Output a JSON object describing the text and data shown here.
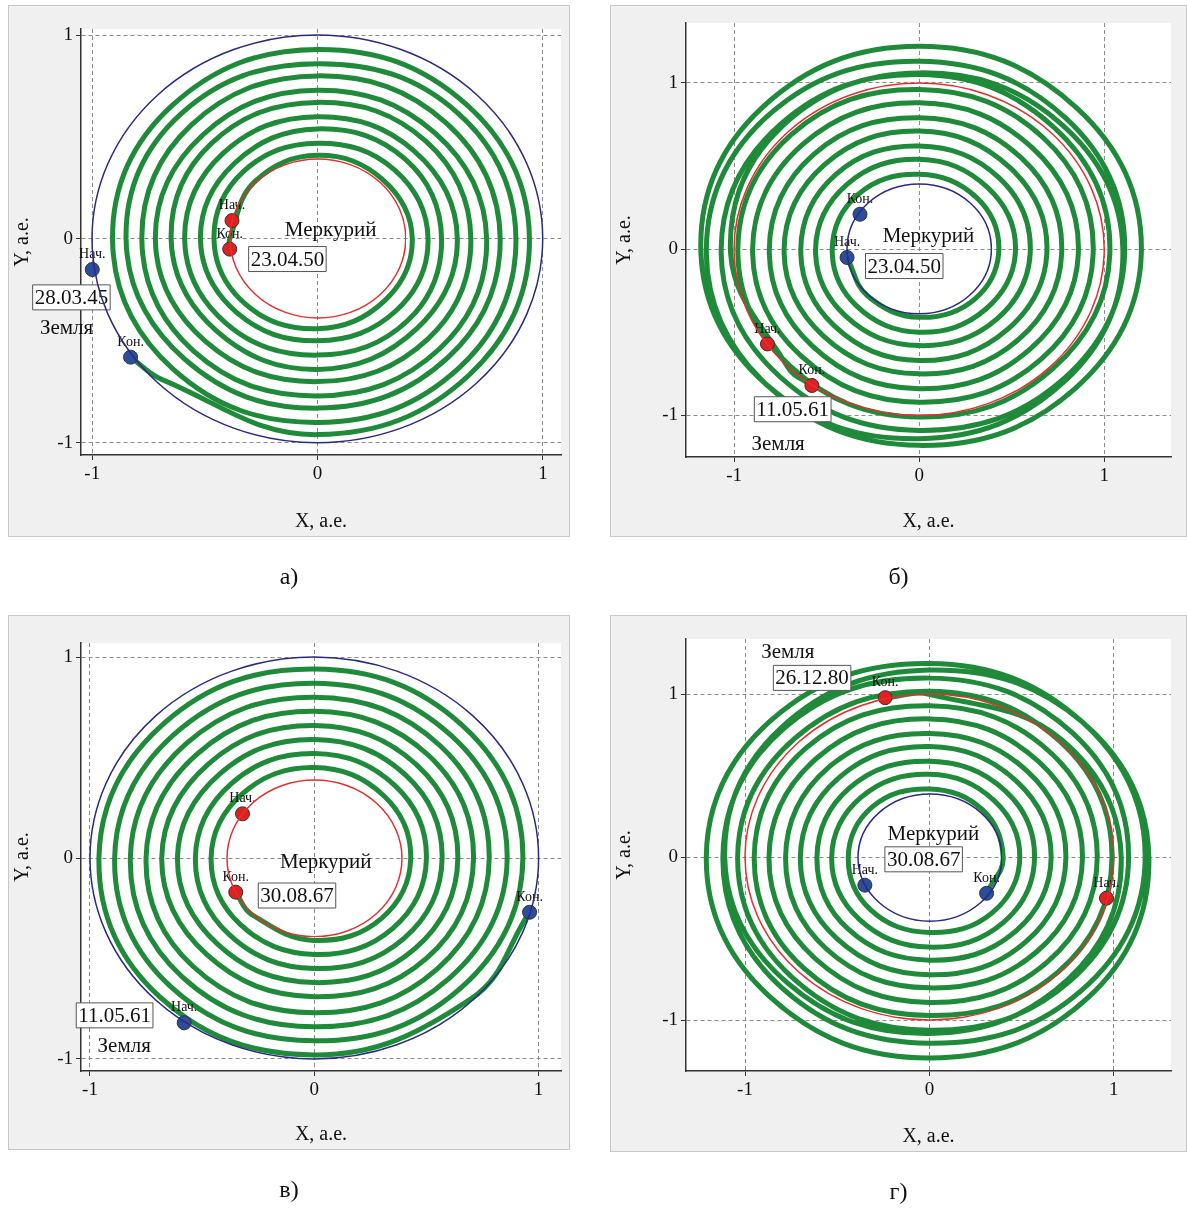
{
  "chart_data": [
    {
      "type": "line",
      "title": "а)",
      "xlabel": "X, а.е.",
      "ylabel": "Y, а.е.",
      "xlim": [
        -1.05,
        1.08
      ],
      "ylim": [
        -1.06,
        1.03
      ],
      "xticks": [
        -1,
        0,
        1
      ],
      "yticks": [
        -1,
        0,
        1
      ],
      "grid": true,
      "series": [
        {
          "type": "line",
          "color": "#1e8a3a",
          "x": [
            -0.83,
            -0.69,
            0,
            0.67,
            0.94,
            0.66,
            0,
            -0.65,
            -0.91,
            -0.64,
            0,
            0.63,
            0.88,
            0.62,
            0,
            -0.61,
            -0.85,
            -0.59,
            0,
            0.58,
            0.81,
            0.57,
            0,
            -0.56,
            -0.78,
            -0.55,
            0,
            0.54,
            0.75,
            0.52,
            0,
            -0.51,
            -0.72,
            -0.5,
            0,
            0.49,
            0.68,
            0.48,
            0,
            -0.47,
            -0.65,
            -0.45,
            0,
            0.44,
            0.62,
            0.43,
            0,
            -0.42,
            -0.59,
            -0.41,
            0,
            0.4,
            0.55,
            0.39,
            0,
            -0.37,
            -0.52,
            -0.36,
            0,
            0.35,
            0.49,
            0.34,
            0,
            -0.33,
            -0.46,
            -0.32,
            0,
            0.3,
            0.42,
            0.29,
            0,
            -0.28,
            -0.39,
            -0.39
          ],
          "values": [
            -0.58,
            -0.69,
            -0.96,
            -0.67,
            0,
            0.66,
            0.93,
            0.65,
            0,
            -0.64,
            -0.9,
            -0.63,
            0,
            0.62,
            0.86,
            0.61,
            0,
            -0.59,
            -0.83,
            -0.58,
            0,
            0.57,
            0.8,
            0.56,
            0,
            -0.55,
            -0.77,
            -0.54,
            0,
            0.52,
            0.73,
            0.51,
            0,
            -0.5,
            -0.7,
            -0.49,
            0,
            0.48,
            0.67,
            0.47,
            0,
            -0.45,
            -0.64,
            -0.44,
            0,
            0.43,
            0.6,
            0.42,
            0,
            -0.41,
            -0.57,
            -0.4,
            0,
            0.39,
            0.54,
            0.37,
            0,
            -0.36,
            -0.5,
            -0.35,
            0,
            0.34,
            0.47,
            0.33,
            0,
            -0.32,
            -0.44,
            -0.3,
            0,
            0.29,
            0.41,
            0.28,
            0,
            -0.05
          ]
        },
        {
          "type": "scatter",
          "marker": "circle",
          "color": "#2b4e9b",
          "x": [
            -1.0,
            -0.83
          ],
          "values": [
            -0.15,
            -0.58
          ],
          "value_labels": [
            "Нач.",
            "Кон."
          ]
        },
        {
          "type": "scatter",
          "marker": "circle",
          "color": "#e02020",
          "x": [
            -0.38,
            -0.39
          ],
          "values": [
            0.09,
            -0.05
          ],
          "value_labels": [
            "Нач.",
            "Кон."
          ]
        }
      ],
      "annotations": [
        "Меркурий",
        "23.04.50",
        "28.03.45",
        "Земля"
      ]
    },
    {
      "type": "line",
      "title": "б)",
      "xlabel": "X, а.е.",
      "ylabel": "Y, а.е.",
      "xlim": [
        -1.26,
        1.36
      ],
      "ylim": [
        -1.25,
        1.36
      ],
      "xticks": [
        -1,
        0,
        1
      ],
      "yticks": [
        -1,
        0,
        1
      ],
      "grid": true,
      "series": [
        {
          "type": "line",
          "color": "#1e8a3a",
          "x": [
            -0.39,
            -0.28,
            0,
            0.3,
            0.43,
            0.31,
            0,
            -0.33,
            -0.47,
            -0.34,
            0,
            0.36,
            0.52,
            0.37,
            0,
            -0.39,
            -0.56,
            -0.4,
            0,
            0.42,
            0.6,
            0.43,
            0,
            -0.45,
            -0.64,
            -0.46,
            0,
            0.48,
            0.69,
            0.49,
            0,
            -0.51,
            -0.73,
            -0.52,
            0,
            0.54,
            0.77,
            0.55,
            0,
            -0.57,
            -0.81,
            -0.58,
            0,
            0.6,
            0.86,
            0.61,
            0,
            -0.63,
            -0.9,
            -0.64,
            0,
            0.66,
            0.94,
            0.67,
            0,
            -0.69,
            -0.98,
            -0.7,
            0,
            0.72,
            1.03,
            0.73,
            0,
            -0.75,
            -1.07,
            -0.76,
            0,
            0.78,
            1.11,
            0.79,
            0,
            -0.81,
            -1.15,
            -0.82,
            0,
            0.84,
            1.2,
            0.85,
            0,
            -0.85,
            -1.18,
            -0.82,
            0,
            0.79,
            1.1,
            0.76,
            0,
            -0.74,
            -1.02,
            -0.71,
            -0.58
          ],
          "values": [
            -0.05,
            -0.28,
            -0.41,
            -0.3,
            0,
            0.31,
            0.45,
            0.33,
            0,
            -0.34,
            -0.5,
            -0.36,
            0,
            0.37,
            0.54,
            0.39,
            0,
            -0.4,
            -0.58,
            -0.42,
            0,
            0.43,
            0.62,
            0.45,
            0,
            -0.46,
            -0.67,
            -0.48,
            0,
            0.49,
            0.71,
            0.51,
            0,
            -0.52,
            -0.75,
            -0.54,
            0,
            0.55,
            0.79,
            0.57,
            0,
            -0.58,
            -0.84,
            -0.6,
            0,
            0.61,
            0.88,
            0.63,
            0,
            -0.64,
            -0.92,
            -0.66,
            0,
            0.67,
            0.96,
            0.69,
            0,
            -0.7,
            -1.01,
            -0.72,
            0,
            0.73,
            1.05,
            0.75,
            0,
            -0.76,
            -1.09,
            -0.78,
            0,
            0.79,
            1.13,
            0.81,
            0,
            -0.82,
            -1.18,
            -0.84,
            0,
            0.85,
            1.22,
            0.85,
            0,
            -0.82,
            -1.14,
            -0.79,
            0,
            0.76,
            1.06,
            0.74,
            0,
            -0.71,
            -0.82
          ]
        },
        {
          "type": "scatter",
          "marker": "circle",
          "color": "#2b4e9b",
          "x": [
            -0.39,
            -0.32
          ],
          "values": [
            -0.05,
            0.21
          ],
          "value_labels": [
            "Нач.",
            "Кон."
          ]
        },
        {
          "type": "scatter",
          "marker": "circle",
          "color": "#e02020",
          "x": [
            -0.82,
            -0.58
          ],
          "values": [
            -0.57,
            -0.82
          ],
          "value_labels": [
            "Нач.",
            "Кон."
          ]
        }
      ],
      "annotations": [
        "Меркурий",
        "23.04.50",
        "11.05.61",
        "Земля"
      ]
    },
    {
      "type": "line",
      "title": "в)",
      "xlabel": "X, а.е.",
      "ylabel": "Y, а.е.",
      "xlim": [
        -1.04,
        1.1
      ],
      "ylim": [
        -1.06,
        1.07
      ],
      "xticks": [
        -1,
        0,
        1
      ],
      "yticks": [
        -1,
        0,
        1
      ],
      "grid": true,
      "series": [
        {
          "type": "line",
          "color": "#1e8a3a",
          "x": [
            -0.35,
            -0.28,
            0,
            0.3,
            0.43,
            0.31,
            0,
            -0.32,
            -0.46,
            -0.33,
            0,
            0.35,
            0.5,
            0.36,
            0,
            -0.37,
            -0.53,
            -0.38,
            0,
            0.4,
            0.57,
            0.41,
            0,
            -0.42,
            -0.61,
            -0.43,
            0,
            0.45,
            0.64,
            0.46,
            0,
            -0.47,
            -0.68,
            -0.48,
            0,
            0.5,
            0.71,
            0.51,
            0,
            -0.52,
            -0.75,
            -0.54,
            0,
            0.55,
            0.78,
            0.56,
            0,
            -0.57,
            -0.82,
            -0.59,
            0,
            0.6,
            0.86,
            0.61,
            0,
            -0.62,
            -0.89,
            -0.64,
            0,
            0.65,
            0.93,
            0.66,
            0,
            -0.67,
            -0.96,
            -0.69,
            0,
            0.7,
            0.96
          ],
          "values": [
            -0.17,
            -0.28,
            -0.41,
            -0.3,
            0,
            0.31,
            0.45,
            0.32,
            0,
            -0.33,
            -0.48,
            -0.35,
            0,
            0.36,
            0.52,
            0.37,
            0,
            -0.38,
            -0.55,
            -0.4,
            0,
            0.41,
            0.59,
            0.42,
            0,
            -0.43,
            -0.62,
            -0.45,
            0,
            0.46,
            0.66,
            0.47,
            0,
            -0.48,
            -0.69,
            -0.5,
            0,
            0.51,
            0.73,
            0.52,
            0,
            -0.54,
            -0.77,
            -0.55,
            0,
            0.56,
            0.8,
            0.57,
            0,
            -0.59,
            -0.84,
            -0.6,
            0,
            0.61,
            0.87,
            0.62,
            0,
            -0.64,
            -0.91,
            -0.65,
            0,
            0.66,
            0.94,
            0.67,
            0,
            -0.69,
            -0.98,
            -0.7,
            -0.27
          ]
        },
        {
          "type": "scatter",
          "marker": "circle",
          "color": "#2b4e9b",
          "x": [
            -0.58,
            0.96
          ],
          "values": [
            -0.82,
            -0.27
          ],
          "value_labels": [
            "Нач.",
            "Кон."
          ]
        },
        {
          "type": "scatter",
          "marker": "circle",
          "color": "#e02020",
          "x": [
            -0.32,
            -0.35
          ],
          "values": [
            0.22,
            -0.17
          ],
          "value_labels": [
            "Нач.",
            "Кон."
          ]
        }
      ],
      "annotations": [
        "Меркурий",
        "30.08.67",
        "11.05.61",
        "Земля"
      ]
    },
    {
      "type": "line",
      "title": "г)",
      "xlabel": "X, а.е.",
      "ylabel": "Y, а.е.",
      "xlim": [
        -1.32,
        1.31
      ],
      "ylim": [
        -1.31,
        1.34
      ],
      "xticks": [
        -1,
        0,
        1
      ],
      "yticks": [
        -1,
        0,
        1
      ],
      "grid": true,
      "series": [
        {
          "type": "line",
          "color": "#1e8a3a",
          "x": [
            0.31,
            0.4,
            0.29,
            0,
            -0.31,
            -0.44,
            -0.32,
            0,
            0.34,
            0.49,
            0.35,
            0,
            -0.37,
            -0.53,
            -0.38,
            0,
            0.4,
            0.57,
            0.41,
            0,
            -0.43,
            -0.61,
            -0.44,
            0,
            0.46,
            0.66,
            0.47,
            0,
            -0.49,
            -0.7,
            -0.5,
            0,
            0.52,
            0.74,
            0.53,
            0,
            -0.55,
            -0.78,
            -0.56,
            0,
            0.58,
            0.83,
            0.59,
            0,
            -0.61,
            -0.87,
            -0.62,
            0,
            0.64,
            0.91,
            0.65,
            0,
            -0.67,
            -0.95,
            -0.68,
            0,
            0.7,
            0.99,
            0.71,
            0,
            -0.73,
            -1.04,
            -0.74,
            0,
            0.76,
            1.08,
            0.77,
            0,
            -0.79,
            -1.12,
            -0.8,
            0,
            0.82,
            1.17,
            0.83,
            0,
            -0.85,
            -1.21,
            -0.86,
            0,
            0.86,
            1.19,
            0.83,
            0,
            -0.8,
            -1.11,
            -0.77,
            0,
            0.75,
            1.04,
            0.72,
            0,
            -0.24
          ],
          "values": [
            -0.22,
            0,
            0.29,
            0.42,
            0.31,
            0,
            -0.32,
            -0.46,
            -0.34,
            0,
            0.35,
            0.51,
            0.37,
            0,
            -0.38,
            -0.55,
            -0.4,
            0,
            0.41,
            0.59,
            0.43,
            0,
            -0.44,
            -0.63,
            -0.46,
            0,
            0.47,
            0.68,
            0.49,
            0,
            -0.5,
            -0.72,
            -0.52,
            0,
            0.53,
            0.76,
            0.55,
            0,
            -0.56,
            -0.8,
            -0.58,
            0,
            0.59,
            0.85,
            0.61,
            0,
            -0.62,
            -0.89,
            -0.64,
            0,
            0.65,
            0.93,
            0.67,
            0,
            -0.68,
            -0.97,
            -0.7,
            0,
            0.71,
            1.02,
            0.73,
            0,
            -0.74,
            -1.06,
            -0.76,
            0,
            0.77,
            1.1,
            0.79,
            0,
            -0.8,
            -1.14,
            -0.82,
            0,
            0.83,
            1.19,
            0.85,
            0,
            -0.86,
            -1.23,
            -0.86,
            0,
            0.83,
            1.15,
            0.8,
            0,
            -0.77,
            -1.08,
            -0.75,
            0,
            0.72,
            1.0,
            0.98
          ]
        },
        {
          "type": "scatter",
          "marker": "circle",
          "color": "#2b4e9b",
          "x": [
            -0.35,
            0.31
          ],
          "values": [
            -0.17,
            -0.22
          ],
          "value_labels": [
            "Нач.",
            "Кон."
          ]
        },
        {
          "type": "scatter",
          "marker": "circle",
          "color": "#e02020",
          "x": [
            0.96,
            -0.24
          ],
          "values": [
            -0.25,
            0.98
          ],
          "value_labels": [
            "Нач.",
            "Кон."
          ]
        }
      ],
      "annotations": [
        "Меркурий",
        "30.08.67",
        "26.12.80",
        "Земля"
      ]
    }
  ]
}
